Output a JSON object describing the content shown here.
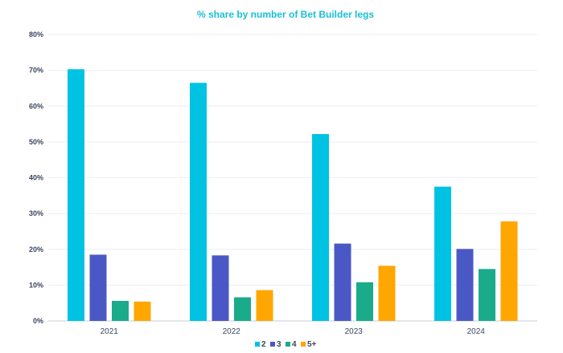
{
  "chart_data": {
    "type": "bar",
    "title": "% share by number of Bet Builder legs",
    "title_color": "#17c0d8",
    "categories": [
      "2021",
      "2022",
      "2023",
      "2024"
    ],
    "ylim": [
      0,
      80
    ],
    "yticks": [
      0,
      10,
      20,
      30,
      40,
      50,
      60,
      70,
      80
    ],
    "ytick_labels": [
      "0%",
      "10%",
      "20%",
      "30%",
      "40%",
      "50%",
      "60%",
      "70%",
      "80%"
    ],
    "grid": true,
    "legend_position": "bottom-center",
    "series": [
      {
        "name": "2",
        "color": "#00c3e3",
        "values": [
          70.3,
          66.5,
          52.2,
          37.5
        ]
      },
      {
        "name": "3",
        "color": "#4a58c6",
        "values": [
          18.5,
          18.3,
          21.6,
          20.1
        ]
      },
      {
        "name": "4",
        "color": "#1aab8a",
        "values": [
          5.6,
          6.6,
          10.8,
          14.5
        ]
      },
      {
        "name": "5+",
        "color": "#ffa600",
        "values": [
          5.4,
          8.6,
          15.4,
          27.8
        ]
      }
    ]
  }
}
